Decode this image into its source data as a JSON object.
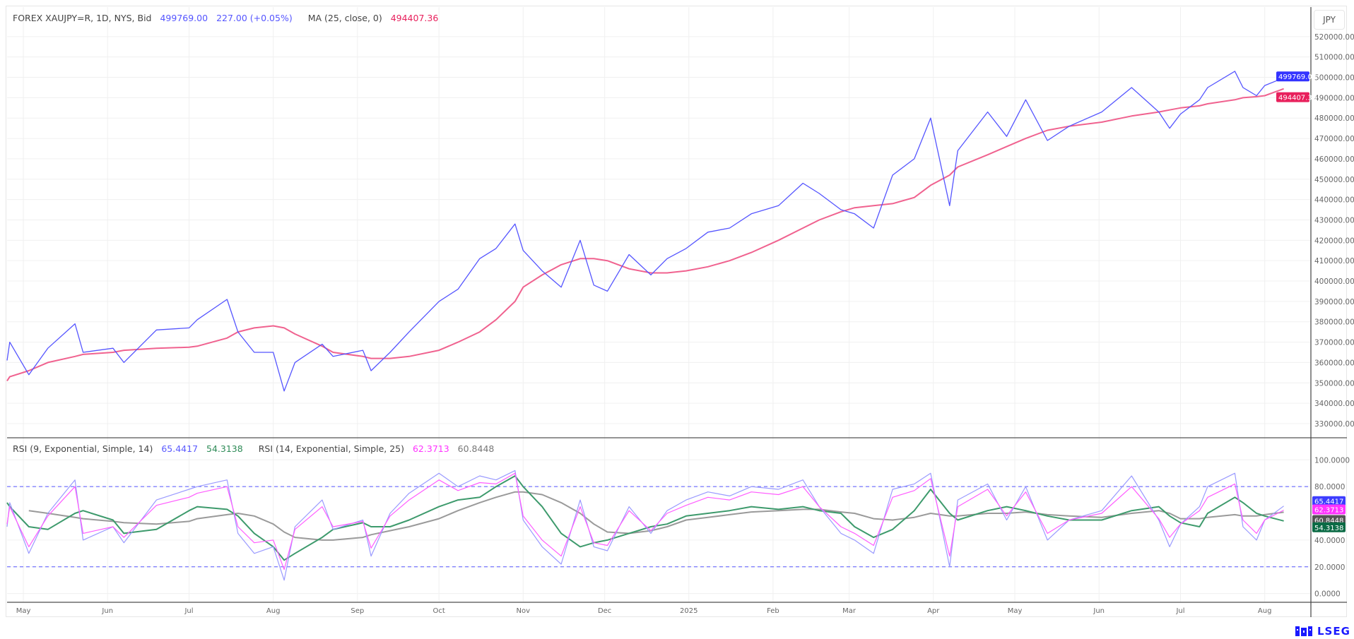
{
  "header": {
    "symbol": "FOREX XAUJPY=R, 1D, NYS, Bid",
    "last": "499769.00",
    "change": "227.00 (+0.05%)",
    "ma_label": "MA (25, close, 0)",
    "ma_value": "494407.36",
    "currency_button": "JPY"
  },
  "rsi_header": {
    "rsi1_label": "RSI (9, Exponential, Simple, 14)",
    "rsi1_value": "65.4417",
    "rsi1_signal": "54.3138",
    "rsi2_label": "RSI (14, Exponential, Simple, 25)",
    "rsi2_value": "62.3713",
    "rsi2_signal": "60.8448"
  },
  "logo": {
    "text": "LSEG"
  },
  "colors": {
    "price": "#5555ff",
    "ma": "#f0628f",
    "rsi9": "#9a9aff",
    "rsi14": "#ff5cff",
    "rsi9_signal": "#3d9a6c",
    "rsi14_signal": "#9a9a9a",
    "price_badge": "#3434ff",
    "ma_badge": "#e8205c",
    "rsi9_badge": "#3d3dff",
    "rsi14_badge": "#ff33ff",
    "rsi14_signal_badge": "#555555",
    "rsi9_signal_badge": "#0b6b45",
    "band": "#5555ff"
  },
  "chart_data": [
    {
      "type": "line",
      "pane": "price",
      "xlim": [
        "2024-04-25",
        "2025-08-18"
      ],
      "ylim": [
        323400,
        534500
      ],
      "yticks": [
        "330000.00",
        "340000.00",
        "350000.00",
        "360000.00",
        "370000.00",
        "380000.00",
        "390000.00",
        "400000.00",
        "410000.00",
        "420000.00",
        "430000.00",
        "440000.00",
        "450000.00",
        "460000.00",
        "470000.00",
        "480000.00",
        "490000.00",
        "500000.00",
        "510000.00",
        "520000.00"
      ],
      "xticks": [
        {
          "date": "2024-05-01",
          "label": "May"
        },
        {
          "date": "2024-06-01",
          "label": "Jun"
        },
        {
          "date": "2024-07-01",
          "label": "Jul"
        },
        {
          "date": "2024-08-01",
          "label": "Aug"
        },
        {
          "date": "2024-09-01",
          "label": "Sep"
        },
        {
          "date": "2024-10-01",
          "label": "Oct"
        },
        {
          "date": "2024-11-01",
          "label": "Nov"
        },
        {
          "date": "2024-12-01",
          "label": "Dec"
        },
        {
          "date": "2025-01-01",
          "label": "2025"
        },
        {
          "date": "2025-02-01",
          "label": "Feb"
        },
        {
          "date": "2025-03-01",
          "label": "Mar"
        },
        {
          "date": "2025-04-01",
          "label": "Apr"
        },
        {
          "date": "2025-05-01",
          "label": "May"
        },
        {
          "date": "2025-06-01",
          "label": "Jun"
        },
        {
          "date": "2025-07-01",
          "label": "Jul"
        },
        {
          "date": "2025-08-01",
          "label": "Aug"
        }
      ],
      "grid": true,
      "x": [
        "2024-04-25",
        "2024-04-26",
        "2024-05-03",
        "2024-05-10",
        "2024-05-20",
        "2024-05-23",
        "2024-06-03",
        "2024-06-07",
        "2024-06-19",
        "2024-07-01",
        "2024-07-04",
        "2024-07-15",
        "2024-07-19",
        "2024-07-25",
        "2024-08-01",
        "2024-08-05",
        "2024-08-09",
        "2024-08-19",
        "2024-08-23",
        "2024-09-03",
        "2024-09-06",
        "2024-09-13",
        "2024-09-20",
        "2024-10-01",
        "2024-10-08",
        "2024-10-16",
        "2024-10-22",
        "2024-10-29",
        "2024-11-01",
        "2024-11-08",
        "2024-11-15",
        "2024-11-22",
        "2024-11-27",
        "2024-12-02",
        "2024-12-10",
        "2024-12-18",
        "2024-12-24",
        "2024-12-31",
        "2025-01-08",
        "2025-01-16",
        "2025-01-24",
        "2025-02-03",
        "2025-02-12",
        "2025-02-18",
        "2025-02-26",
        "2025-03-03",
        "2025-03-10",
        "2025-03-17",
        "2025-03-25",
        "2025-03-31",
        "2025-04-07",
        "2025-04-10",
        "2025-04-21",
        "2025-04-28",
        "2025-05-05",
        "2025-05-13",
        "2025-05-21",
        "2025-06-02",
        "2025-06-13",
        "2025-06-23",
        "2025-06-27",
        "2025-07-01",
        "2025-07-08",
        "2025-07-11",
        "2025-07-21",
        "2025-07-24",
        "2025-07-29",
        "2025-08-01",
        "2025-08-08"
      ],
      "series": [
        {
          "name": "FOREX XAUJPY=R",
          "key": "price",
          "values": [
            361000,
            370000,
            354000,
            367000,
            379000,
            365000,
            367000,
            360000,
            376000,
            377000,
            381000,
            391000,
            375000,
            365000,
            365000,
            346000,
            360000,
            369000,
            363000,
            366000,
            356000,
            365000,
            375000,
            390000,
            396000,
            411000,
            416000,
            428000,
            415000,
            405000,
            397000,
            420000,
            398000,
            395000,
            413000,
            403000,
            411000,
            416000,
            424000,
            426000,
            433000,
            437000,
            448000,
            443000,
            435000,
            433000,
            426000,
            452000,
            460000,
            480000,
            437000,
            464000,
            483000,
            471000,
            489000,
            469000,
            476000,
            483000,
            495000,
            483000,
            475000,
            482000,
            489000,
            495000,
            503000,
            495000,
            491000,
            496000,
            499769
          ]
        },
        {
          "name": "MA (25, close, 0)",
          "key": "ma",
          "values": [
            351000,
            353000,
            356000,
            360000,
            363000,
            364000,
            365000,
            366000,
            367000,
            367500,
            368000,
            372000,
            375000,
            377000,
            378000,
            377000,
            374000,
            368000,
            365000,
            363000,
            362000,
            362000,
            363000,
            366000,
            370000,
            375000,
            381000,
            390000,
            397000,
            403000,
            408000,
            411000,
            411000,
            410000,
            406000,
            404000,
            404000,
            405000,
            407000,
            410000,
            414000,
            420000,
            426000,
            430000,
            434000,
            436000,
            437000,
            438000,
            441000,
            447000,
            452000,
            456000,
            462000,
            466000,
            470000,
            474000,
            476000,
            478000,
            481000,
            483000,
            484000,
            485000,
            486000,
            487000,
            489000,
            490000,
            490500,
            491000,
            494407.36
          ]
        }
      ]
    },
    {
      "type": "line",
      "pane": "rsi",
      "xlim": [
        "2024-04-25",
        "2025-08-18"
      ],
      "ylim": [
        -6,
        116
      ],
      "yticks": [
        "0.0000",
        "20.0000",
        "40.0000",
        "80.0000",
        "100.0000"
      ],
      "bands": [
        20,
        80
      ],
      "series": [
        {
          "name": "RSI (9, Exponential, Simple, 14)",
          "key": "rsi9",
          "values": [
            50,
            68,
            30,
            60,
            85,
            40,
            50,
            38,
            70,
            78,
            80,
            85,
            45,
            30,
            35,
            10,
            50,
            70,
            48,
            55,
            28,
            60,
            75,
            90,
            80,
            88,
            85,
            92,
            55,
            35,
            22,
            70,
            35,
            32,
            65,
            45,
            62,
            70,
            76,
            73,
            80,
            78,
            85,
            65,
            45,
            40,
            30,
            78,
            82,
            90,
            20,
            70,
            82,
            55,
            80,
            40,
            55,
            62,
            88,
            55,
            35,
            52,
            65,
            80,
            90,
            50,
            40,
            55,
            65.4417
          ]
        },
        {
          "name": "RSI (9) signal",
          "key": "rsi9_signal",
          "values": [
            68,
            65,
            50,
            48,
            60,
            62,
            55,
            45,
            48,
            62,
            65,
            63,
            58,
            45,
            35,
            25,
            30,
            42,
            48,
            53,
            50,
            50,
            55,
            65,
            70,
            72,
            80,
            88,
            80,
            65,
            45,
            35,
            38,
            40,
            45,
            50,
            52,
            58,
            60,
            62,
            65,
            63,
            65,
            62,
            60,
            50,
            42,
            48,
            62,
            78,
            60,
            55,
            62,
            65,
            62,
            58,
            55,
            55,
            62,
            65,
            58,
            53,
            50,
            60,
            72,
            68,
            60,
            58,
            54.3138
          ]
        },
        {
          "name": "RSI (14, Exponential, Simple, 25)",
          "key": "rsi14",
          "values": [
            52,
            65,
            35,
            58,
            80,
            45,
            50,
            42,
            66,
            72,
            75,
            80,
            50,
            38,
            40,
            18,
            48,
            65,
            50,
            54,
            34,
            58,
            70,
            85,
            77,
            83,
            82,
            90,
            58,
            40,
            28,
            65,
            38,
            36,
            62,
            47,
            60,
            66,
            72,
            70,
            76,
            74,
            80,
            65,
            50,
            45,
            36,
            72,
            77,
            86,
            28,
            65,
            78,
            58,
            76,
            45,
            55,
            60,
            80,
            56,
            42,
            52,
            62,
            72,
            82,
            55,
            45,
            55,
            62.3713
          ]
        },
        {
          "name": "RSI (14) signal",
          "key": "rsi14_signal",
          "values": [
            null,
            null,
            62,
            60,
            57,
            56,
            54,
            53,
            52,
            54,
            56,
            59,
            60,
            58,
            52,
            46,
            42,
            40,
            40,
            42,
            44,
            47,
            50,
            56,
            62,
            68,
            72,
            76,
            76,
            74,
            68,
            60,
            52,
            46,
            45,
            47,
            50,
            55,
            57,
            59,
            61,
            62,
            63,
            63,
            61,
            60,
            56,
            55,
            57,
            60,
            58,
            58,
            60,
            60,
            61,
            59,
            58,
            57,
            60,
            62,
            60,
            56,
            56,
            57,
            59,
            58,
            58,
            59,
            60.8448
          ]
        }
      ]
    }
  ]
}
